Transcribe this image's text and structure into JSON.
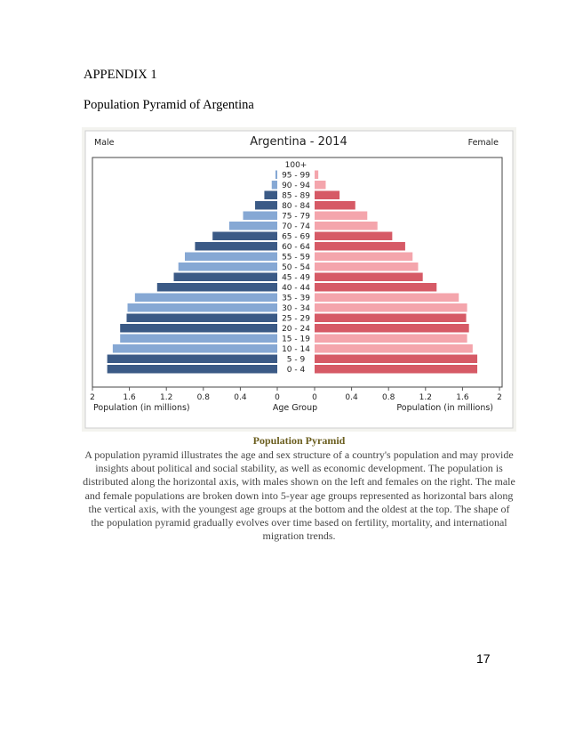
{
  "document": {
    "appendix_label": "APPENDIX 1",
    "pyramid_title": "Population Pyramid of Argentina",
    "caption_title": "Population Pyramid",
    "caption_text": "A population pyramid illustrates the age and sex structure of a country's population and may provide insights about political and social stability, as well as economic development. The population is distributed along the horizontal axis, with males shown on the left and females on the right. The male and female populations are broken down into 5-year age groups represented as horizontal bars along the vertical axis, with the youngest age groups at the bottom and the oldest at the top. The shape of the population pyramid gradually evolves over time based on fertility, mortality, and international migration trends.",
    "page_number": "17"
  },
  "chart_data": {
    "type": "bar",
    "orientation": "horizontal-pyramid",
    "title": "Argentina - 2014",
    "left_label": "Male",
    "right_label": "Female",
    "xlabel_left": "Population (in millions)",
    "xlabel_center": "Age Group",
    "xlabel_right": "Population (in millions)",
    "xlim": [
      0,
      2
    ],
    "tick_labels_left": [
      "2",
      "1.6",
      "1.2",
      "0.8",
      "0.4",
      "0"
    ],
    "tick_labels_right": [
      "0",
      "0.4",
      "0.8",
      "1.2",
      "1.6",
      "2"
    ],
    "tick_values_left": [
      2,
      1.6,
      1.2,
      0.8,
      0.4,
      0
    ],
    "tick_values_right": [
      0,
      0.4,
      0.8,
      1.2,
      1.6,
      2
    ],
    "categories": [
      "100+",
      "95 - 99",
      "90 - 94",
      "85 - 89",
      "80 - 84",
      "75 - 79",
      "70 - 74",
      "65 - 69",
      "60 - 64",
      "55 - 59",
      "50 - 54",
      "45 - 49",
      "40 - 44",
      "35 - 39",
      "30 - 34",
      "25 - 29",
      "20 - 24",
      "15 - 19",
      "10 - 14",
      "5 - 9",
      "0 - 4"
    ],
    "series": [
      {
        "name": "Male",
        "values": [
          0.0,
          0.02,
          0.06,
          0.14,
          0.24,
          0.37,
          0.52,
          0.7,
          0.89,
          1.0,
          1.07,
          1.12,
          1.3,
          1.54,
          1.62,
          1.63,
          1.7,
          1.7,
          1.78,
          1.84,
          1.84
        ]
      },
      {
        "name": "Female",
        "values": [
          0.0,
          0.04,
          0.12,
          0.27,
          0.44,
          0.57,
          0.68,
          0.84,
          0.98,
          1.06,
          1.12,
          1.17,
          1.32,
          1.56,
          1.65,
          1.64,
          1.67,
          1.65,
          1.71,
          1.76,
          1.76
        ]
      }
    ],
    "colors": {
      "male_dark": "#3b5a86",
      "male_light": "#86a8d4",
      "female_dark": "#d65a66",
      "female_light": "#f4a5ac",
      "axis": "#555555"
    }
  }
}
